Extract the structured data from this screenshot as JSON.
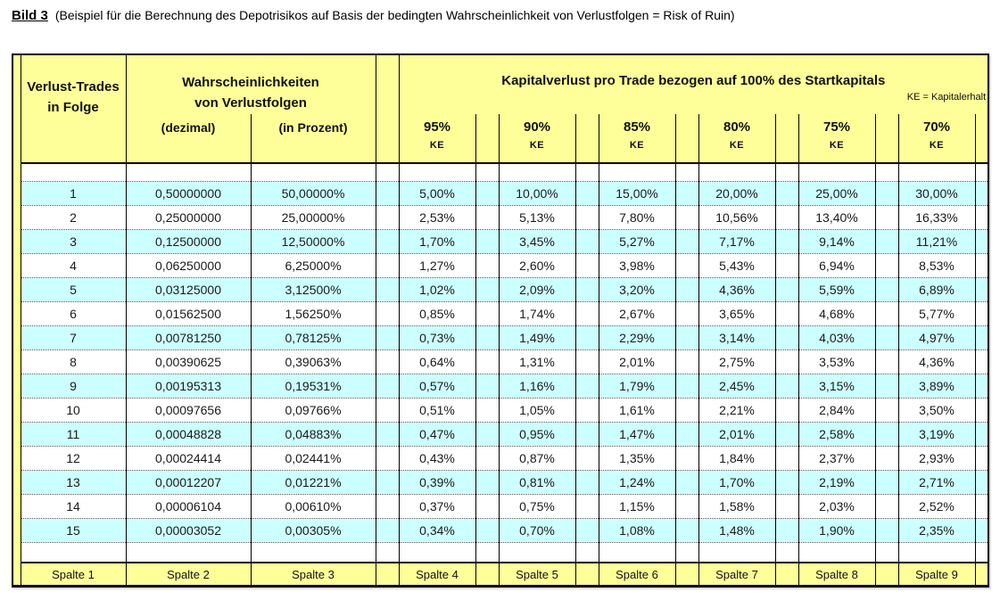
{
  "title": {
    "label": "Bild 3",
    "caption": "(Beispiel für die Berechnung des Depotrisikos auf Basis der bedingten Wahrscheinlichkeit von Verlustfolgen = Risk of Ruin)"
  },
  "colors": {
    "header_fill": "#ffff99",
    "alt_row_fill": "#ccffff",
    "plain_row_fill": "#ffffff",
    "border": "#000000"
  },
  "table": {
    "col1_header": "Verlust-Trades\nin Folge",
    "prob_group_header": "Wahrscheinlichkeiten\nvon Verlustfolgen",
    "dezimal_header": "(dezimal)",
    "prozent_header": "(in Prozent)",
    "kap_group_header": "Kapitalverlust pro Trade bezogen auf 100% des Startkapitals",
    "ke_note": "KE = Kapitalerhalt",
    "ke_columns": [
      "95%",
      "90%",
      "85%",
      "80%",
      "75%",
      "70%"
    ],
    "ke_label": "KE",
    "rows": [
      {
        "n": "1",
        "dezimal": "0,50000000",
        "prozent": "50,00000%",
        "values": [
          "5,00%",
          "10,00%",
          "15,00%",
          "20,00%",
          "25,00%",
          "30,00%"
        ]
      },
      {
        "n": "2",
        "dezimal": "0,25000000",
        "prozent": "25,00000%",
        "values": [
          "2,53%",
          "5,13%",
          "7,80%",
          "10,56%",
          "13,40%",
          "16,33%"
        ]
      },
      {
        "n": "3",
        "dezimal": "0,12500000",
        "prozent": "12,50000%",
        "values": [
          "1,70%",
          "3,45%",
          "5,27%",
          "7,17%",
          "9,14%",
          "11,21%"
        ]
      },
      {
        "n": "4",
        "dezimal": "0,06250000",
        "prozent": "6,25000%",
        "values": [
          "1,27%",
          "2,60%",
          "3,98%",
          "5,43%",
          "6,94%",
          "8,53%"
        ]
      },
      {
        "n": "5",
        "dezimal": "0,03125000",
        "prozent": "3,12500%",
        "values": [
          "1,02%",
          "2,09%",
          "3,20%",
          "4,36%",
          "5,59%",
          "6,89%"
        ]
      },
      {
        "n": "6",
        "dezimal": "0,01562500",
        "prozent": "1,56250%",
        "values": [
          "0,85%",
          "1,74%",
          "2,67%",
          "3,65%",
          "4,68%",
          "5,77%"
        ]
      },
      {
        "n": "7",
        "dezimal": "0,00781250",
        "prozent": "0,78125%",
        "values": [
          "0,73%",
          "1,49%",
          "2,29%",
          "3,14%",
          "4,03%",
          "4,97%"
        ]
      },
      {
        "n": "8",
        "dezimal": "0,00390625",
        "prozent": "0,39063%",
        "values": [
          "0,64%",
          "1,31%",
          "2,01%",
          "2,75%",
          "3,53%",
          "4,36%"
        ]
      },
      {
        "n": "9",
        "dezimal": "0,00195313",
        "prozent": "0,19531%",
        "values": [
          "0,57%",
          "1,16%",
          "1,79%",
          "2,45%",
          "3,15%",
          "3,89%"
        ]
      },
      {
        "n": "10",
        "dezimal": "0,00097656",
        "prozent": "0,09766%",
        "values": [
          "0,51%",
          "1,05%",
          "1,61%",
          "2,21%",
          "2,84%",
          "3,50%"
        ]
      },
      {
        "n": "11",
        "dezimal": "0,00048828",
        "prozent": "0,04883%",
        "values": [
          "0,47%",
          "0,95%",
          "1,47%",
          "2,01%",
          "2,58%",
          "3,19%"
        ]
      },
      {
        "n": "12",
        "dezimal": "0,00024414",
        "prozent": "0,02441%",
        "values": [
          "0,43%",
          "0,87%",
          "1,35%",
          "1,84%",
          "2,37%",
          "2,93%"
        ]
      },
      {
        "n": "13",
        "dezimal": "0,00012207",
        "prozent": "0,01221%",
        "values": [
          "0,39%",
          "0,81%",
          "1,24%",
          "1,70%",
          "2,19%",
          "2,71%"
        ]
      },
      {
        "n": "14",
        "dezimal": "0,00006104",
        "prozent": "0,00610%",
        "values": [
          "0,37%",
          "0,75%",
          "1,15%",
          "1,58%",
          "2,03%",
          "2,52%"
        ]
      },
      {
        "n": "15",
        "dezimal": "0,00003052",
        "prozent": "0,00305%",
        "values": [
          "0,34%",
          "0,70%",
          "1,08%",
          "1,48%",
          "1,90%",
          "2,35%"
        ]
      }
    ],
    "footer_labels": [
      "Spalte 1",
      "Spalte 2",
      "Spalte 3",
      "Spalte 4",
      "Spalte 5",
      "Spalte 6",
      "Spalte 7",
      "Spalte 8",
      "Spalte 9"
    ]
  }
}
